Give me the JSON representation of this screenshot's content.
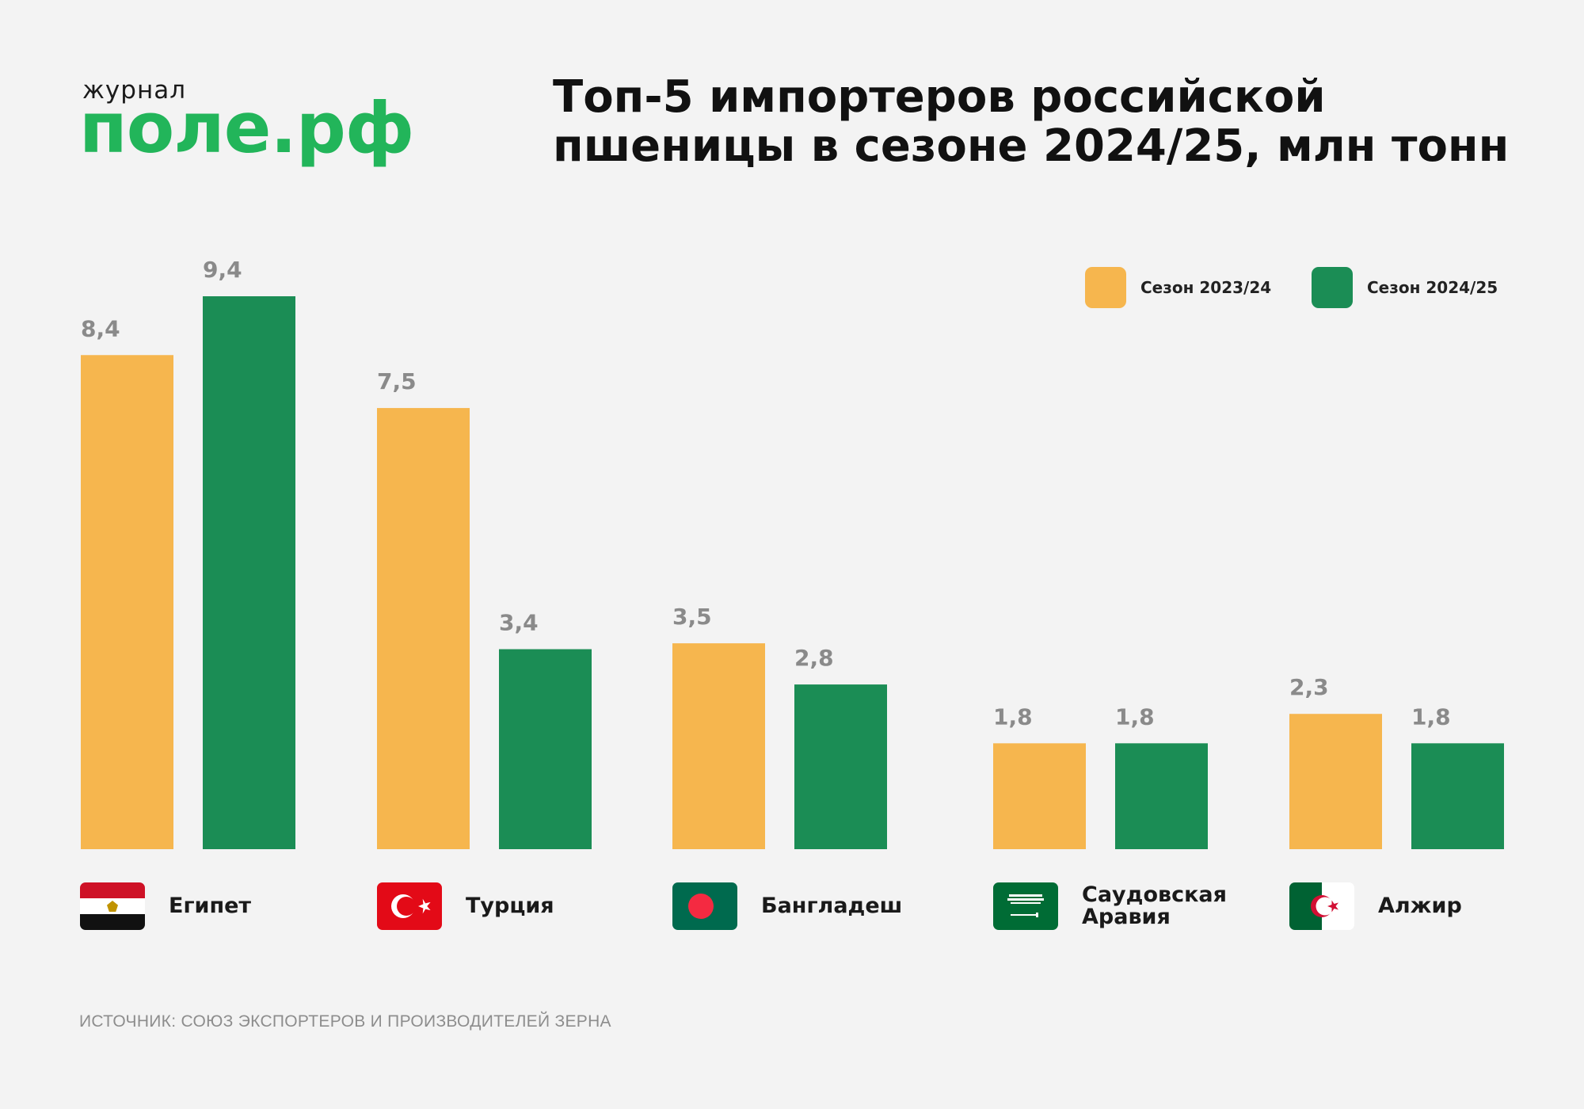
{
  "logo": {
    "small": "журнал",
    "big": "поле.рф"
  },
  "title": {
    "line1": "Топ-5 импортеров российской",
    "line2": "пшеницы в сезоне 2024/25, млн тонн"
  },
  "source": "ИСТОЧНИК: СОЮЗ ЭКСПОРТЕРОВ И ПРОИЗВОДИТЕЛЕЙ ЗЕРНА",
  "colors": {
    "season_2023_24": "#f6b64e",
    "season_2024_25": "#1b8d55",
    "value_label": "#8a8a8a",
    "logo_green": "#22b55a"
  },
  "legend": [
    {
      "label": "Сезон 2023/24",
      "color": "#f6b64e"
    },
    {
      "label": "Сезон 2024/25",
      "color": "#1b8d55"
    }
  ],
  "countries": [
    {
      "name": "Египет",
      "flag": "egypt-flag-icon"
    },
    {
      "name": "Турция",
      "flag": "turkey-flag-icon"
    },
    {
      "name": "Бангладеш",
      "flag": "bangladesh-flag-icon"
    },
    {
      "name": "Саудовская Аравия",
      "flag": "saudi-arabia-flag-icon"
    },
    {
      "name": "Алжир",
      "flag": "algeria-flag-icon"
    }
  ],
  "chart_data": {
    "type": "bar",
    "title": "Топ-5 импортеров российской пшеницы в сезоне 2024/25, млн тонн",
    "xlabel": "",
    "ylabel": "",
    "categories": [
      "Египет",
      "Турция",
      "Бангладеш",
      "Саудовская Аравия",
      "Алжир"
    ],
    "series": [
      {
        "name": "Сезон 2023/24",
        "values": [
          8.4,
          7.5,
          3.5,
          1.8,
          2.3
        ],
        "labels": [
          "8,4",
          "7,5",
          "3,5",
          "1,8",
          "2,3"
        ]
      },
      {
        "name": "Сезон 2024/25",
        "values": [
          9.4,
          3.4,
          2.8,
          1.8,
          1.8
        ],
        "labels": [
          "9,4",
          "3,4",
          "2,8",
          "1,8",
          "1,8"
        ]
      }
    ],
    "ylim": [
      0,
      9.4
    ],
    "grid": false,
    "legend_position": "top-right"
  }
}
